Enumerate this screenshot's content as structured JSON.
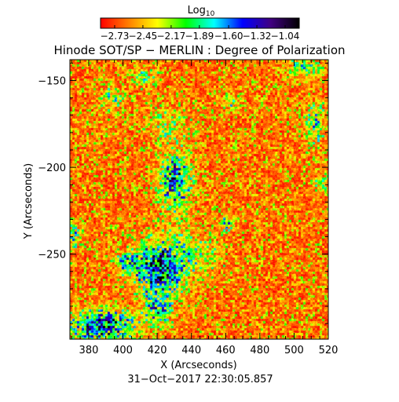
{
  "chart_data": {
    "type": "heatmap",
    "title": "Hinode SOT/SP − MERLIN : Degree of Polarization",
    "timestamp": "31−Oct−2017 22:30:05.857",
    "xlabel": "X (Arcseconds)",
    "ylabel": "Y (Arcseconds)",
    "xlim": [
      369,
      520
    ],
    "ylim": [
      -299,
      -138
    ],
    "x_ticks": [
      380,
      400,
      420,
      440,
      460,
      480,
      500,
      520
    ],
    "y_ticks": [
      -150,
      -200,
      -250
    ],
    "x_tick_labels": [
      "380",
      "400",
      "420",
      "440",
      "460",
      "480",
      "500",
      "520"
    ],
    "y_tick_labels": [
      "−150",
      "−200",
      "−250"
    ],
    "colorbar": {
      "label_base": "Log",
      "label_sub": "10",
      "range": [
        -2.87,
        -0.9
      ],
      "ticks": [
        -2.73,
        -2.45,
        -2.17,
        -1.89,
        -1.6,
        -1.32,
        -1.04
      ],
      "tick_labels": [
        "−2.73",
        "−2.45",
        "−2.17",
        "−1.89",
        "−1.60",
        "−1.32",
        "−1.04"
      ],
      "colormap": [
        "#ff0000",
        "#ff8000",
        "#ffff00",
        "#00ff00",
        "#00ffff",
        "#0000ff",
        "#400080",
        "#000000"
      ]
    },
    "background_level": -2.6,
    "features": [
      {
        "x": 421,
        "y": -258,
        "sx": 9,
        "sy": 10,
        "amp": 1.25
      },
      {
        "x": 430,
        "y": -208,
        "sx": 6,
        "sy": 11,
        "amp": 0.95
      },
      {
        "x": 388,
        "y": -291,
        "sx": 12,
        "sy": 6,
        "amp": 1.1
      },
      {
        "x": 420,
        "y": -282,
        "sx": 6,
        "sy": 6,
        "amp": 0.7
      },
      {
        "x": 403,
        "y": -255,
        "sx": 5,
        "sy": 4,
        "amp": 0.7
      },
      {
        "x": 440,
        "y": -250,
        "sx": 11,
        "sy": 8,
        "amp": 0.35
      },
      {
        "x": 427,
        "y": -175,
        "sx": 9,
        "sy": 7,
        "amp": 0.3
      },
      {
        "x": 393,
        "y": -160,
        "sx": 4,
        "sy": 5,
        "amp": 0.45
      },
      {
        "x": 412,
        "y": -148,
        "sx": 5,
        "sy": 4,
        "amp": 0.4
      },
      {
        "x": 512,
        "y": -175,
        "sx": 4,
        "sy": 9,
        "amp": 0.5
      },
      {
        "x": 505,
        "y": -143,
        "sx": 7,
        "sy": 4,
        "amp": 0.45
      },
      {
        "x": 461,
        "y": -232,
        "sx": 3,
        "sy": 3,
        "amp": 0.55
      },
      {
        "x": 463,
        "y": -162,
        "sx": 3,
        "sy": 3,
        "amp": 0.4
      },
      {
        "x": 516,
        "y": -209,
        "sx": 3,
        "sy": 3,
        "amp": 0.4
      },
      {
        "x": 371,
        "y": -240,
        "sx": 3,
        "sy": 5,
        "amp": 0.5
      }
    ]
  }
}
